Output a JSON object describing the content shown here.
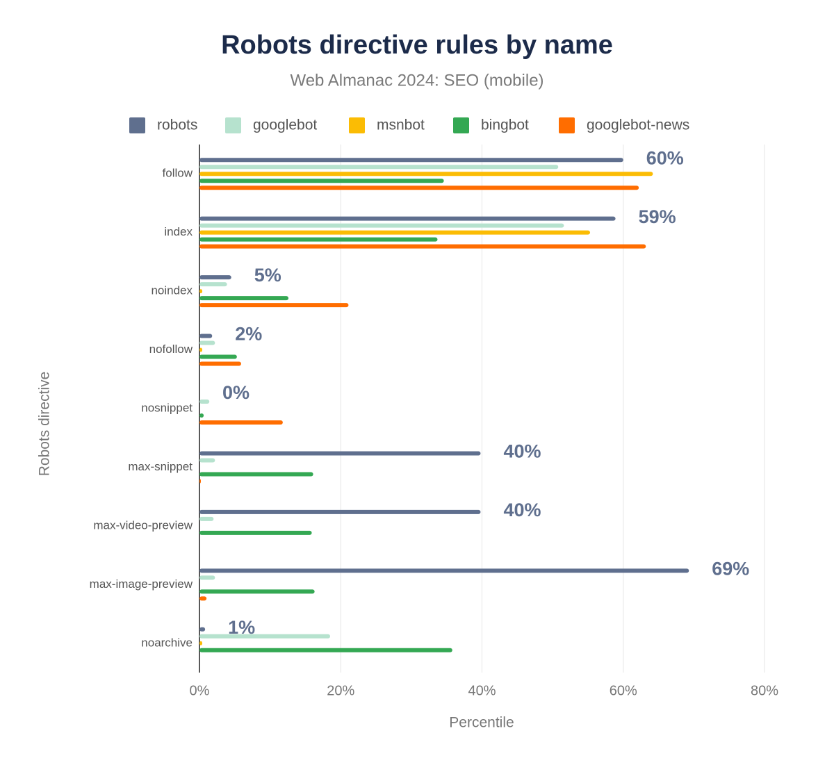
{
  "chart_data": {
    "type": "bar",
    "orientation": "horizontal",
    "title": "Robots directive rules by name",
    "subtitle": "Web Almanac 2024: SEO (mobile)",
    "x_label": "Percentile",
    "y_label": "Robots directive",
    "categories": [
      "follow",
      "index",
      "noindex",
      "nofollow",
      "nosnippet",
      "max-snippet",
      "max-video-preview",
      "max-image-preview",
      "noarchive"
    ],
    "series": [
      {
        "name": "robots",
        "color": "#5f6f8e",
        "values": [
          60.0,
          58.9,
          4.5,
          1.8,
          0.0,
          39.8,
          39.8,
          69.3,
          0.8
        ],
        "value_labels": [
          "60%",
          "59%",
          "5%",
          "2%",
          "0%",
          "40%",
          "40%",
          "69%",
          "1%"
        ]
      },
      {
        "name": "googlebot",
        "color": "#b6e2ce",
        "values": [
          50.8,
          51.6,
          3.9,
          2.2,
          1.4,
          2.2,
          2.0,
          2.2,
          18.5
        ]
      },
      {
        "name": "msnbot",
        "color": "#fbbc04",
        "values": [
          64.2,
          55.3,
          0.4,
          0.4,
          0.0,
          0.0,
          0.0,
          0.0,
          0.4
        ]
      },
      {
        "name": "bingbot",
        "color": "#34a853",
        "values": [
          34.6,
          33.7,
          12.6,
          5.3,
          0.6,
          16.1,
          15.9,
          16.3,
          35.8
        ]
      },
      {
        "name": "googlebot-news",
        "color": "#ff6d00",
        "values": [
          62.2,
          63.2,
          21.1,
          5.9,
          11.8,
          0.2,
          0.0,
          1.0,
          0.0
        ]
      }
    ],
    "xlim": [
      0,
      80
    ],
    "xticks": [
      {
        "value": 0,
        "label": "0%"
      },
      {
        "value": 20,
        "label": "20%"
      },
      {
        "value": 40,
        "label": "40%"
      },
      {
        "value": 60,
        "label": "60%"
      },
      {
        "value": 80,
        "label": "80%"
      }
    ],
    "grid": true
  }
}
